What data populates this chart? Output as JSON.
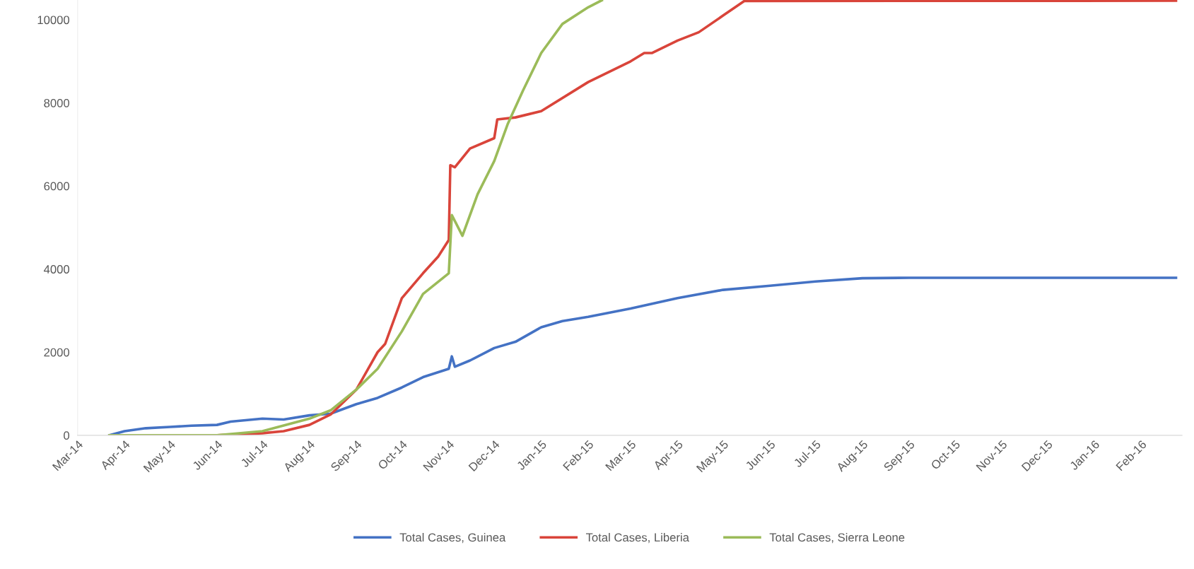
{
  "chart_data": {
    "type": "line",
    "x": [
      "2014-03-22",
      "2014-04-01",
      "2014-04-15",
      "2014-05-01",
      "2014-05-15",
      "2014-06-01",
      "2014-06-10",
      "2014-07-01",
      "2014-07-15",
      "2014-08-01",
      "2014-08-15",
      "2014-09-01",
      "2014-09-15",
      "2014-10-01",
      "2014-10-15",
      "2014-11-01",
      "2014-11-03",
      "2014-11-05",
      "2014-11-15",
      "2014-12-01",
      "2014-12-15",
      "2015-01-01",
      "2015-01-15",
      "2015-02-01",
      "2015-03-01",
      "2015-04-01",
      "2015-05-01",
      "2015-06-01",
      "2015-07-01",
      "2015-08-01",
      "2015-09-01",
      "2015-11-01",
      "2016-01-01",
      "2016-02-24"
    ],
    "series": [
      {
        "name": "Total Cases, Guinea",
        "color": "#4472c4",
        "values": [
          0,
          100,
          170,
          200,
          230,
          250,
          330,
          400,
          380,
          480,
          520,
          750,
          900,
          1150,
          1400,
          1600,
          1900,
          1650,
          1800,
          2100,
          2250,
          2600,
          2750,
          2850,
          3050,
          3300,
          3500,
          3600,
          3700,
          3780,
          3790,
          3790,
          3790,
          3790
        ]
      },
      {
        "name": "Total Cases, Liberia",
        "color": "#d9443a",
        "x": [
          "2014-03-22",
          "2014-06-01",
          "2014-07-01",
          "2014-07-15",
          "2014-08-01",
          "2014-08-15",
          "2014-09-01",
          "2014-09-15",
          "2014-09-20",
          "2014-10-01",
          "2014-10-15",
          "2014-10-25",
          "2014-11-01",
          "2014-11-02",
          "2014-11-05",
          "2014-11-15",
          "2014-12-01",
          "2014-12-03",
          "2014-12-15",
          "2015-01-01",
          "2015-02-01",
          "2015-03-01",
          "2015-03-10",
          "2015-03-15",
          "2015-04-01",
          "2015-04-15",
          "2015-05-01",
          "2015-05-15",
          "2016-02-24"
        ],
        "values": [
          0,
          0,
          50,
          100,
          250,
          500,
          1100,
          2000,
          2200,
          3300,
          3900,
          4300,
          4700,
          6500,
          6450,
          6900,
          7150,
          7600,
          7650,
          7800,
          8500,
          9000,
          9200,
          9200,
          9500,
          9700,
          10100,
          10450,
          10460
        ]
      },
      {
        "name": "Total Cases, Sierra Leone",
        "color": "#9bbb59",
        "x": [
          "2014-03-22",
          "2014-06-01",
          "2014-07-01",
          "2014-08-01",
          "2014-08-15",
          "2014-09-01",
          "2014-09-15",
          "2014-10-01",
          "2014-10-15",
          "2014-11-01",
          "2014-11-03",
          "2014-11-10",
          "2014-11-20",
          "2014-12-01",
          "2014-12-10",
          "2014-12-20",
          "2015-01-01",
          "2015-01-15",
          "2015-02-01",
          "2015-02-10"
        ],
        "values": [
          0,
          0,
          100,
          400,
          600,
          1100,
          1600,
          2500,
          3400,
          3900,
          5300,
          4800,
          5800,
          6600,
          7500,
          8300,
          9200,
          9900,
          10300,
          10470
        ]
      }
    ],
    "xlim": [
      "2014-03-01",
      "2016-02-28"
    ],
    "xticks": [
      {
        "value": "2014-03-01",
        "label": "Mar-14"
      },
      {
        "value": "2014-04-01",
        "label": "Apr-14"
      },
      {
        "value": "2014-05-01",
        "label": "May-14"
      },
      {
        "value": "2014-06-01",
        "label": "Jun-14"
      },
      {
        "value": "2014-07-01",
        "label": "Jul-14"
      },
      {
        "value": "2014-08-01",
        "label": "Aug-14"
      },
      {
        "value": "2014-09-01",
        "label": "Sep-14"
      },
      {
        "value": "2014-10-01",
        "label": "Oct-14"
      },
      {
        "value": "2014-11-01",
        "label": "Nov-14"
      },
      {
        "value": "2014-12-01",
        "label": "Dec-14"
      },
      {
        "value": "2015-01-01",
        "label": "Jan-15"
      },
      {
        "value": "2015-02-01",
        "label": "Feb-15"
      },
      {
        "value": "2015-03-01",
        "label": "Mar-15"
      },
      {
        "value": "2015-04-01",
        "label": "Apr-15"
      },
      {
        "value": "2015-05-01",
        "label": "May-15"
      },
      {
        "value": "2015-06-01",
        "label": "Jun-15"
      },
      {
        "value": "2015-07-01",
        "label": "Jul-15"
      },
      {
        "value": "2015-08-01",
        "label": "Aug-15"
      },
      {
        "value": "2015-09-01",
        "label": "Sep-15"
      },
      {
        "value": "2015-10-01",
        "label": "Oct-15"
      },
      {
        "value": "2015-11-01",
        "label": "Nov-15"
      },
      {
        "value": "2015-12-01",
        "label": "Dec-15"
      },
      {
        "value": "2016-01-01",
        "label": "Jan-16"
      },
      {
        "value": "2016-02-01",
        "label": "Feb-16"
      }
    ],
    "ylim": [
      0,
      10476
    ],
    "yticks": [
      0,
      2000,
      4000,
      6000,
      8000,
      10000
    ],
    "grid": false,
    "legend": "bottom",
    "marker": "none",
    "line_style": "solid"
  }
}
